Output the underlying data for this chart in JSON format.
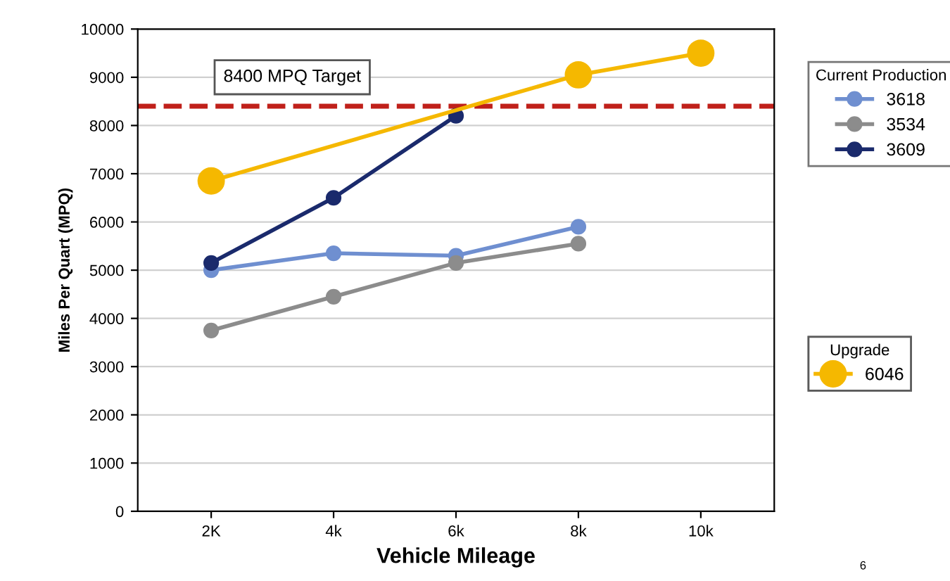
{
  "chart_data": {
    "type": "line",
    "xlabel": "Vehicle Mileage",
    "ylabel": "Miles Per Quart (MPQ)",
    "categories": [
      "2K",
      "4k",
      "6k",
      "8k",
      "10k"
    ],
    "series": [
      {
        "name": "3618",
        "color": "#6f8fd0",
        "values": [
          5000,
          5350,
          5300,
          5900,
          null
        ]
      },
      {
        "name": "3534",
        "color": "#8c8c8c",
        "values": [
          3750,
          4450,
          5150,
          5550,
          null
        ]
      },
      {
        "name": "3609",
        "color": "#1a2a6c",
        "values": [
          5150,
          6500,
          8200,
          null,
          null
        ]
      },
      {
        "name": "6046",
        "color": "#f5b800",
        "values": [
          6850,
          null,
          null,
          9050,
          9500
        ]
      }
    ],
    "legend_title": "Current Production",
    "ylim": [
      0,
      10000
    ],
    "yticks": [
      0,
      1000,
      2000,
      3000,
      4000,
      5000,
      6000,
      7000,
      8000,
      9000,
      10000
    ],
    "grid": "y",
    "legend": "right",
    "marker": "circle",
    "line_style": "solid",
    "ref_lines": [
      {
        "axis": "y",
        "value": 8400,
        "label": "8400 MPQ Target",
        "color": "#c0201a",
        "line_style": "dashed"
      }
    ],
    "annotations": [
      "Upgrade",
      "6"
    ]
  }
}
